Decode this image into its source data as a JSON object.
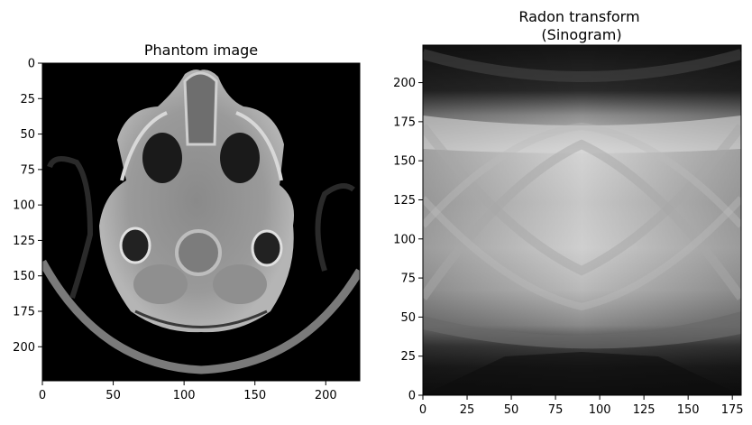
{
  "chart_data": [
    {
      "type": "heatmap",
      "title": "Phantom image",
      "xlabel": "",
      "ylabel": "",
      "xlim": [
        0,
        224
      ],
      "ylim": [
        224,
        0
      ],
      "x_ticks": [
        "0",
        "50",
        "100",
        "150",
        "200"
      ],
      "y_ticks": [
        "0",
        "25",
        "50",
        "75",
        "100",
        "125",
        "150",
        "175",
        "200"
      ],
      "colormap": "gray",
      "content": "axial CT head phantom"
    },
    {
      "type": "heatmap",
      "title": "Radon transform\n(Sinogram)",
      "xlabel": "",
      "ylabel": "",
      "xlim": [
        0,
        180
      ],
      "ylim": [
        0,
        224
      ],
      "x_ticks": [
        "0",
        "25",
        "50",
        "75",
        "100",
        "125",
        "150",
        "175"
      ],
      "y_ticks": [
        "0",
        "25",
        "50",
        "75",
        "100",
        "125",
        "150",
        "175",
        "200"
      ],
      "colormap": "gray",
      "content": "sinogram of phantom"
    }
  ]
}
